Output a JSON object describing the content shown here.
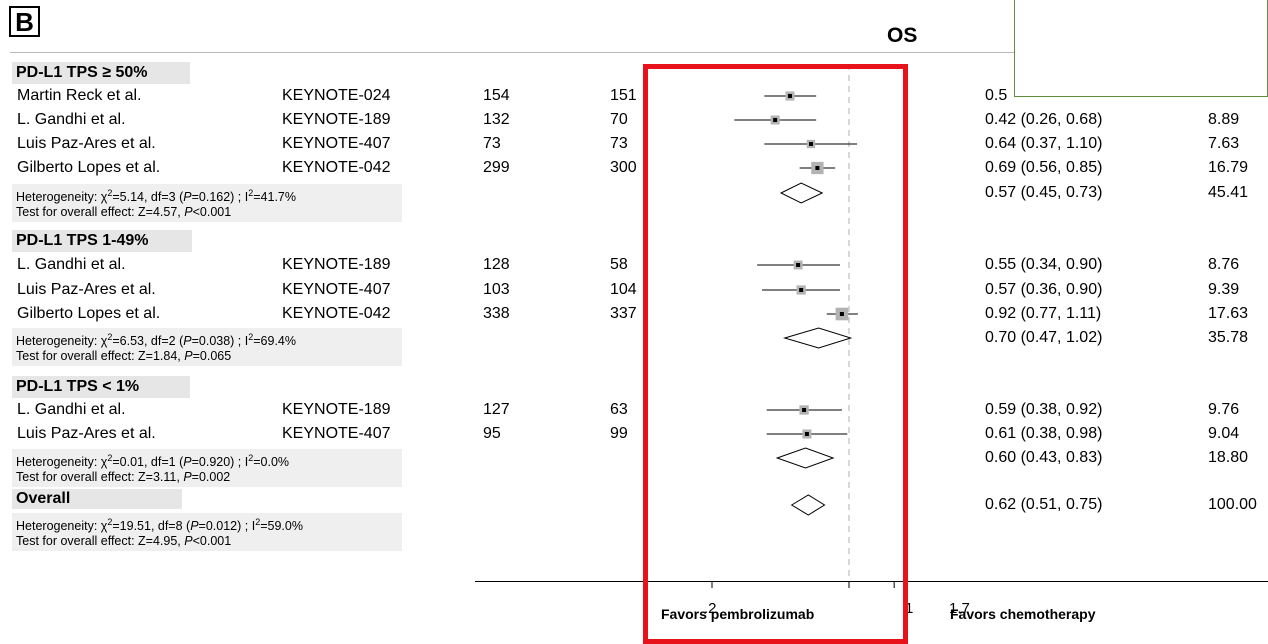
{
  "panel_label": "B",
  "chart_data": {
    "type": "forest",
    "title": "OS",
    "xaxis": {
      "ticks": [
        0.2,
        1,
        1.7
      ],
      "tick_labels": [
        ".2",
        "1",
        "1.7"
      ],
      "scale": "log",
      "reference_line": 1
    },
    "favors_left": "Favors pembrolizumab",
    "favors_right": "Favors chemotherapy",
    "groups": [
      {
        "name": "PD-L1 TPS ≥ 50%",
        "studies": [
          {
            "author": "Martin Reck et al.",
            "trial": "KEYNOTE-024",
            "n1": "154",
            "n2": "151",
            "hr": 0.5,
            "lo": 0.37,
            "hi": 0.68,
            "ci_text": "0.5",
            "weight": ""
          },
          {
            "author": "L. Gandhi et al.",
            "trial": "KEYNOTE-189",
            "n1": "132",
            "n2": "70",
            "hr": 0.42,
            "lo": 0.26,
            "hi": 0.68,
            "ci_text": "0.42 (0.26, 0.68)",
            "weight": "8.89"
          },
          {
            "author": "Luis Paz-Ares et al.",
            "trial": "KEYNOTE-407",
            "n1": "73",
            "n2": "73",
            "hr": 0.64,
            "lo": 0.37,
            "hi": 1.1,
            "ci_text": "0.64 (0.37, 1.10)",
            "weight": "7.63"
          },
          {
            "author": "Gilberto Lopes et al.",
            "trial": "KEYNOTE-042",
            "n1": "299",
            "n2": "300",
            "hr": 0.69,
            "lo": 0.56,
            "hi": 0.85,
            "ci_text": "0.69 (0.56, 0.85)",
            "weight": "16.79"
          }
        ],
        "summary": {
          "hr": 0.57,
          "lo": 0.45,
          "hi": 0.73,
          "ci_text": "0.57 (0.45, 0.73)",
          "weight": "45.41"
        },
        "heterogeneity_parts": [
          "Heterogeneity: χ",
          "2",
          "=5.14, df=3 (",
          "P",
          "=0.162) ; I",
          "2",
          "=41.7%"
        ],
        "test_parts": [
          "Test for overall effect: Z=4.57, ",
          "P",
          "<0.001"
        ]
      },
      {
        "name": "PD-L1 TPS 1-49%",
        "studies": [
          {
            "author": "L. Gandhi et al.",
            "trial": "KEYNOTE-189",
            "n1": "128",
            "n2": "58",
            "hr": 0.55,
            "lo": 0.34,
            "hi": 0.9,
            "ci_text": "0.55 (0.34, 0.90)",
            "weight": "8.76"
          },
          {
            "author": "Luis Paz-Ares et al.",
            "trial": "KEYNOTE-407",
            "n1": "103",
            "n2": "104",
            "hr": 0.57,
            "lo": 0.36,
            "hi": 0.9,
            "ci_text": "0.57 (0.36, 0.90)",
            "weight": "9.39"
          },
          {
            "author": "Gilberto Lopes et al.",
            "trial": "KEYNOTE-042",
            "n1": "338",
            "n2": "337",
            "hr": 0.92,
            "lo": 0.77,
            "hi": 1.11,
            "ci_text": "0.92 (0.77, 1.11)",
            "weight": "17.63"
          }
        ],
        "summary": {
          "hr": 0.7,
          "lo": 0.47,
          "hi": 1.02,
          "ci_text": "0.70 (0.47, 1.02)",
          "weight": "35.78"
        },
        "heterogeneity_parts": [
          "Heterogeneity: χ",
          "2",
          "=6.53, df=2 (",
          "P",
          "=0.038) ; I",
          "2",
          "=69.4%"
        ],
        "test_parts": [
          "Test for overall effect: Z=1.84, ",
          "P",
          "=0.065"
        ]
      },
      {
        "name": "PD-L1 TPS < 1%",
        "studies": [
          {
            "author": "L. Gandhi et al.",
            "trial": "KEYNOTE-189",
            "n1": "127",
            "n2": "63",
            "hr": 0.59,
            "lo": 0.38,
            "hi": 0.92,
            "ci_text": "0.59 (0.38, 0.92)",
            "weight": "9.76"
          },
          {
            "author": "Luis Paz-Ares et al.",
            "trial": "KEYNOTE-407",
            "n1": "95",
            "n2": "99",
            "hr": 0.61,
            "lo": 0.38,
            "hi": 0.98,
            "ci_text": "0.61 (0.38, 0.98)",
            "weight": "9.04"
          }
        ],
        "summary": {
          "hr": 0.6,
          "lo": 0.43,
          "hi": 0.83,
          "ci_text": "0.60 (0.43, 0.83)",
          "weight": "18.80"
        },
        "heterogeneity_parts": [
          "Heterogeneity: χ",
          "2",
          "=0.01, df=1 (",
          "P",
          "=0.920) ; I",
          "2",
          "=0.0%"
        ],
        "test_parts": [
          "Test for overall effect: Z=3.11, ",
          "P",
          "=0.002"
        ]
      }
    ],
    "overall": {
      "name": "Overall",
      "hr": 0.62,
      "lo": 0.51,
      "hi": 0.75,
      "ci_text": "0.62 (0.51, 0.75)",
      "weight": "100.00",
      "heterogeneity_parts": [
        "Heterogeneity: χ",
        "2",
        "=19.51, df=8 (",
        "P",
        "=0.012) ; I",
        "2",
        "=59.0%"
      ],
      "test_parts": [
        "Test for overall effect: Z=4.95, ",
        "P",
        "<0.001"
      ]
    }
  },
  "colors": {
    "highlight_box": "#e8131a",
    "legend_border": "#5e8f3e",
    "square_fill": "#b3b3b3"
  }
}
